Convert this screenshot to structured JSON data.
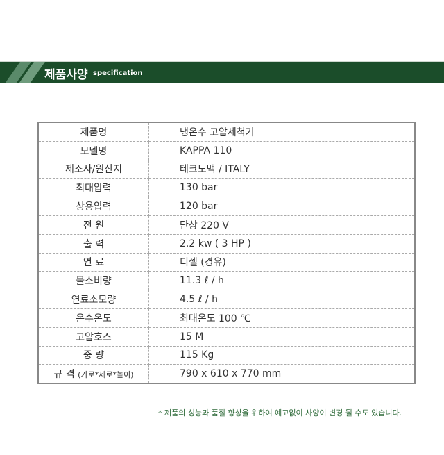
{
  "header": {
    "title": "제품사양",
    "subtitle": "specification",
    "color": "#1b4d2a"
  },
  "specs": [
    {
      "k": "제품명",
      "v": "냉온수 고압세척기"
    },
    {
      "k": "모델명",
      "v": "KAPPA 110"
    },
    {
      "k": "제조사/원산지",
      "v": "테크노맥  /  ITALY"
    },
    {
      "k": "최대압력",
      "v": "130 bar"
    },
    {
      "k": "상용압력",
      "v": "120 bar"
    },
    {
      "k": "전 원",
      "v": "단상  220 V"
    },
    {
      "k": "출 력",
      "v": "2.2 kw ( 3 HP )"
    },
    {
      "k": "연 료",
      "v": "디젤 (경유)"
    },
    {
      "k": "물소비량",
      "v": "11.3  ℓ / h"
    },
    {
      "k": "연료소모량",
      "v": "4.5  ℓ / h"
    },
    {
      "k": "온수온도",
      "v": "최대온도 100 ℃"
    },
    {
      "k": "고압호스",
      "v": "15 M"
    },
    {
      "k": "중 량",
      "v": "115 Kg"
    },
    {
      "k": "규 격",
      "k2": "(가로*세로*높이)",
      "v": "790 x 610 x 770 mm"
    }
  ],
  "note": "* 제품의 성능과 품질 향상을 위하여 예고없이 사양이 변경 될 수도 있습니다."
}
